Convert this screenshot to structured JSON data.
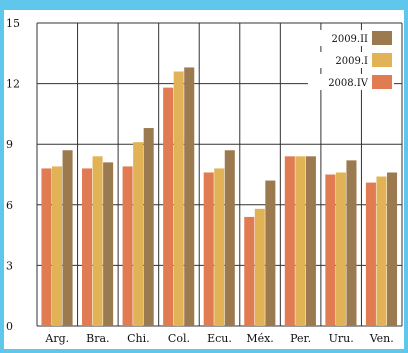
{
  "chart_data": {
    "type": "bar",
    "title": "",
    "xlabel": "",
    "ylabel": "",
    "ylim": [
      0,
      15
    ],
    "yticks": [
      "0",
      "3",
      "6",
      "9",
      "12",
      "15"
    ],
    "categories": [
      "Arg.",
      "Bra.",
      "Chi.",
      "Col.",
      "Ecu.",
      "Méx.",
      "Per.",
      "Uru.",
      "Ven."
    ],
    "series": [
      {
        "name": "2008.IV",
        "color": "#e07b52",
        "values": [
          7.8,
          7.8,
          7.9,
          11.8,
          7.6,
          5.4,
          8.4,
          7.5,
          7.1
        ]
      },
      {
        "name": "2009.I",
        "color": "#e2b356",
        "values": [
          7.9,
          8.4,
          9.1,
          12.6,
          7.8,
          5.8,
          8.4,
          7.6,
          7.4
        ]
      },
      {
        "name": "2009.II",
        "color": "#9b7a4f",
        "values": [
          8.7,
          8.1,
          9.8,
          12.8,
          8.7,
          7.2,
          8.4,
          8.2,
          7.6
        ]
      }
    ],
    "grid": true,
    "legend_position": "top-right",
    "legend_order": [
      "2009.II",
      "2009.I",
      "2008.IV"
    ],
    "colors": {
      "background": "#5fc6ec",
      "gridline": "#333333"
    }
  }
}
